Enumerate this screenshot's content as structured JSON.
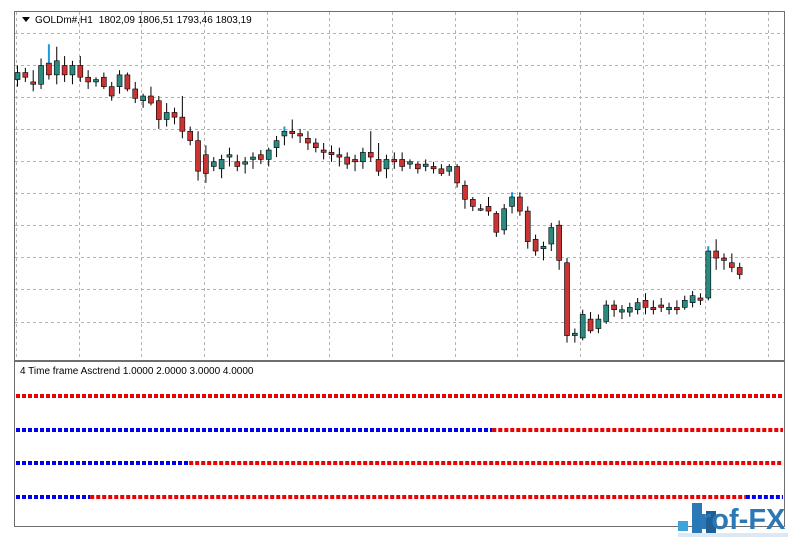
{
  "chart_data": [
    {
      "type": "candlestick",
      "title": "GOLDm#,H1",
      "ohlc_label": "1802,09 1806,51 1793,46 1803,19",
      "grid": true,
      "candles": [
        [
          1806,
          1812,
          1803,
          1809
        ],
        [
          1809,
          1811,
          1805,
          1807
        ],
        [
          1805,
          1810,
          1801,
          1804
        ],
        [
          1804,
          1815,
          1802,
          1812
        ],
        [
          1813,
          1821,
          1806,
          1808
        ],
        [
          1808,
          1820,
          1804,
          1814
        ],
        [
          1812,
          1816,
          1805,
          1808
        ],
        [
          1808,
          1814,
          1804,
          1812
        ],
        [
          1812,
          1816,
          1805,
          1807
        ],
        [
          1807,
          1810,
          1802,
          1805
        ],
        [
          1805,
          1807,
          1803,
          1806
        ],
        [
          1807,
          1809,
          1802,
          1803
        ],
        [
          1803,
          1805,
          1797,
          1799
        ],
        [
          1803,
          1810,
          1800,
          1808
        ],
        [
          1808,
          1809,
          1801,
          1802
        ],
        [
          1802,
          1805,
          1796,
          1798
        ],
        [
          1797,
          1800,
          1794,
          1799
        ],
        [
          1799,
          1803,
          1795,
          1796
        ],
        [
          1797,
          1799,
          1785,
          1789
        ],
        [
          1789,
          1796,
          1786,
          1792
        ],
        [
          1792,
          1794,
          1787,
          1790
        ],
        [
          1790,
          1799,
          1781,
          1784
        ],
        [
          1784,
          1786,
          1778,
          1780
        ],
        [
          1780,
          1784,
          1763,
          1767
        ],
        [
          1774,
          1778,
          1762,
          1766
        ],
        [
          1769,
          1773,
          1767,
          1771
        ],
        [
          1768,
          1774,
          1764,
          1772
        ],
        [
          1773,
          1777,
          1769,
          1774
        ],
        [
          1771,
          1774,
          1767,
          1769
        ],
        [
          1770,
          1773,
          1766,
          1771
        ],
        [
          1772,
          1775,
          1768,
          1773
        ],
        [
          1774,
          1776,
          1770,
          1772
        ],
        [
          1772,
          1777,
          1769,
          1776
        ],
        [
          1777,
          1782,
          1773,
          1780
        ],
        [
          1782,
          1786,
          1778,
          1784
        ],
        [
          1784,
          1789,
          1781,
          1783
        ],
        [
          1783,
          1785,
          1779,
          1782
        ],
        [
          1781,
          1784,
          1776,
          1779
        ],
        [
          1779,
          1781,
          1775,
          1777
        ],
        [
          1776,
          1779,
          1772,
          1775
        ],
        [
          1775,
          1778,
          1771,
          1774
        ],
        [
          1774,
          1777,
          1769,
          1773
        ],
        [
          1773,
          1775,
          1768,
          1770
        ],
        [
          1772,
          1774,
          1767,
          1771
        ],
        [
          1771,
          1777,
          1768,
          1775
        ],
        [
          1775,
          1784,
          1771,
          1773
        ],
        [
          1772,
          1779,
          1765,
          1767
        ],
        [
          1768,
          1774,
          1764,
          1772
        ],
        [
          1772,
          1775,
          1768,
          1771
        ],
        [
          1772,
          1775,
          1767,
          1769
        ],
        [
          1770,
          1772,
          1768,
          1771
        ],
        [
          1770,
          1771,
          1766,
          1768
        ],
        [
          1769,
          1772,
          1767,
          1770
        ],
        [
          1769,
          1771,
          1766,
          1768
        ],
        [
          1768,
          1770,
          1765,
          1766
        ],
        [
          1767,
          1770,
          1765,
          1769
        ],
        [
          1769,
          1770,
          1760,
          1762
        ],
        [
          1761,
          1763,
          1751,
          1755
        ],
        [
          1755,
          1756,
          1750,
          1752
        ],
        [
          1751,
          1753,
          1750,
          1751
        ],
        [
          1752,
          1756,
          1748,
          1750
        ],
        [
          1749,
          1750,
          1739,
          1741
        ],
        [
          1742,
          1753,
          1740,
          1751
        ],
        [
          1752,
          1758,
          1749,
          1756
        ],
        [
          1756,
          1758,
          1748,
          1750
        ],
        [
          1750,
          1752,
          1734,
          1737
        ],
        [
          1738,
          1740,
          1731,
          1733
        ],
        [
          1734,
          1737,
          1729,
          1735
        ],
        [
          1736,
          1745,
          1733,
          1743
        ],
        [
          1744,
          1746,
          1725,
          1729
        ],
        [
          1728,
          1730,
          1694,
          1697
        ],
        [
          1697,
          1700,
          1694,
          1698
        ],
        [
          1696,
          1708,
          1695,
          1706
        ],
        [
          1704,
          1707,
          1698,
          1699
        ],
        [
          1700,
          1706,
          1698,
          1704
        ],
        [
          1703,
          1712,
          1702,
          1710
        ],
        [
          1710,
          1712,
          1705,
          1708
        ],
        [
          1707,
          1710,
          1704,
          1708
        ],
        [
          1707,
          1711,
          1705,
          1709
        ],
        [
          1708,
          1713,
          1706,
          1711
        ],
        [
          1712,
          1715,
          1706,
          1709
        ],
        [
          1709,
          1712,
          1706,
          1708
        ],
        [
          1710,
          1713,
          1707,
          1709
        ],
        [
          1708,
          1711,
          1706,
          1709
        ],
        [
          1709,
          1712,
          1706,
          1708
        ],
        [
          1709,
          1714,
          1708,
          1712
        ],
        [
          1711,
          1716,
          1709,
          1714
        ],
        [
          1713,
          1715,
          1710,
          1712
        ],
        [
          1713,
          1735,
          1712,
          1733
        ],
        [
          1733,
          1738,
          1725,
          1730
        ],
        [
          1730,
          1732,
          1725,
          1729
        ],
        [
          1728,
          1732,
          1724,
          1726
        ],
        [
          1726,
          1728,
          1721,
          1723
        ]
      ],
      "bull_color": "#2a8a80",
      "bear_color": "#cc3333",
      "highlight_color": "#1e9ad6",
      "highlight_candles": [
        4,
        34,
        63,
        88
      ]
    },
    {
      "type": "indicator-lines",
      "title": "4 Time frame Asctrend 1.0000 2.0000 3.0000 4.0000",
      "length": 124,
      "colors": {
        "up": "#0000ee",
        "down": "#ee0000"
      },
      "lines": [
        {
          "segments": [
            [
              "down",
              124
            ]
          ]
        },
        {
          "segments": [
            [
              "up",
              77
            ],
            [
              "down",
              47
            ]
          ]
        },
        {
          "segments": [
            [
              "up",
              28
            ],
            [
              "down",
              96
            ]
          ]
        },
        {
          "segments": [
            [
              "up",
              12
            ],
            [
              "down",
              106
            ],
            [
              "up",
              6
            ]
          ]
        }
      ]
    }
  ],
  "watermark": {
    "text": "rof-FX"
  }
}
